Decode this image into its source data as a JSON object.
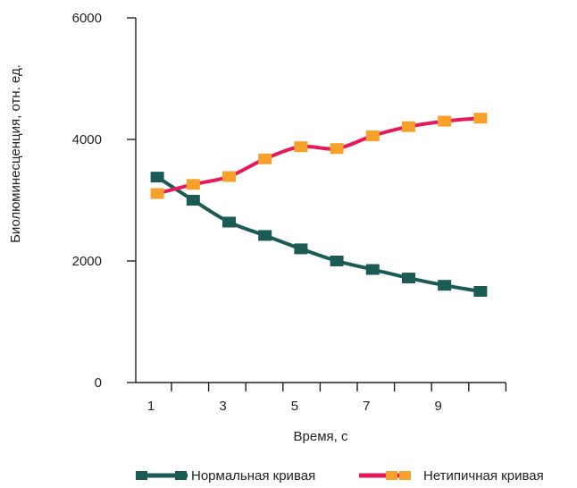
{
  "chart_data": {
    "type": "line",
    "xlabel": "Время, с",
    "ylabel": "Биолюминесценция, отн. ед.",
    "xlim": [
      0.5,
      10.8
    ],
    "ylim": [
      0,
      6000
    ],
    "x_ticks": [
      1,
      3,
      5,
      7,
      9
    ],
    "x_tick_labels": [
      "1",
      "3",
      "5",
      "7",
      "9"
    ],
    "y_ticks": [
      0,
      2000,
      4000,
      6000
    ],
    "y_tick_labels": [
      "0",
      "2000",
      "4000",
      "6000"
    ],
    "grid": false,
    "legend_position": "bottom",
    "series": [
      {
        "name": "Нормальная кривая",
        "color": "#1a5c55",
        "marker_color": "#1a5c55",
        "x": [
          1.1,
          2.1,
          3.1,
          4.1,
          5.1,
          6.1,
          7.1,
          8.1,
          9.1,
          10.1
        ],
        "values": [
          3380,
          3000,
          2640,
          2420,
          2200,
          2000,
          1860,
          1720,
          1600,
          1500
        ]
      },
      {
        "name": "Нетипичная кривая",
        "color": "#e8195a",
        "marker_color": "#f6a22a",
        "x": [
          1.1,
          2.1,
          3.1,
          4.1,
          5.1,
          6.1,
          7.1,
          8.1,
          9.1,
          10.1
        ],
        "values": [
          3110,
          3260,
          3390,
          3680,
          3880,
          3850,
          4060,
          4210,
          4300,
          4350
        ]
      }
    ]
  }
}
